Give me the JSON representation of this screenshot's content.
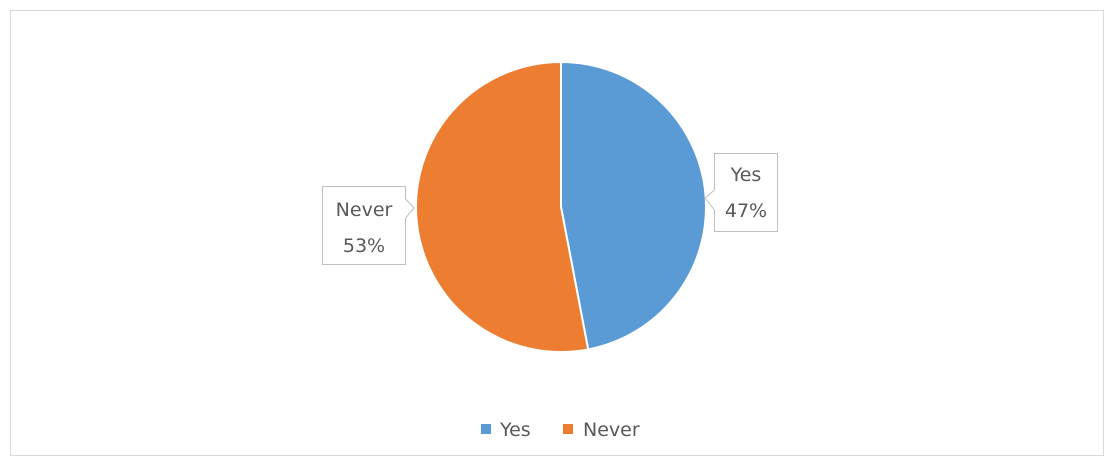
{
  "chart_data": {
    "type": "pie",
    "categories": [
      "Yes",
      "Never"
    ],
    "values": [
      47,
      53
    ],
    "colors": [
      "#5b9bd5",
      "#ed7d31"
    ],
    "data_labels": [
      {
        "category": "Yes",
        "percent": "47%"
      },
      {
        "category": "Never",
        "percent": "53%"
      }
    ],
    "legend": {
      "position": "bottom",
      "entries": [
        "Yes",
        "Never"
      ]
    },
    "title": "",
    "start_angle_deg": 0,
    "direction": "clockwise"
  }
}
